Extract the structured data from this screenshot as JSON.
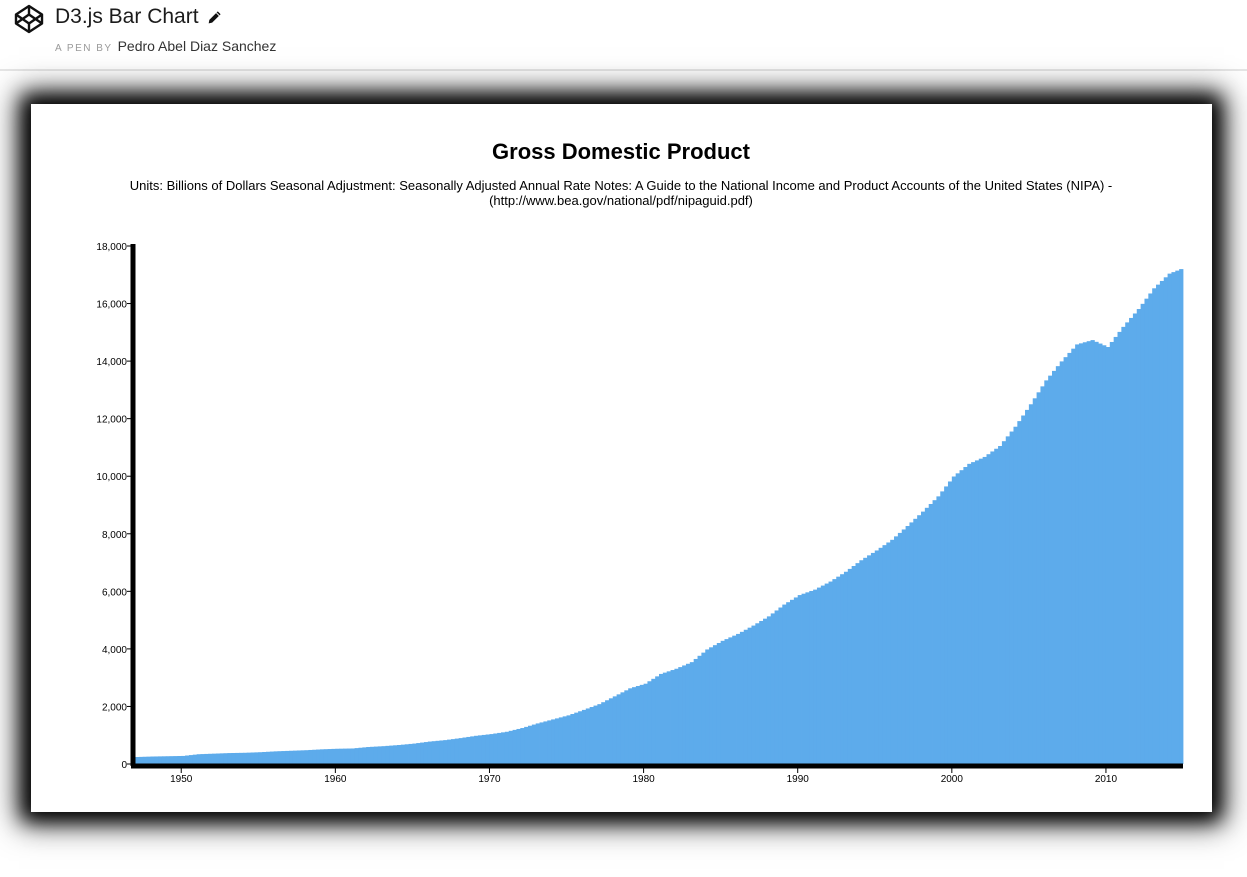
{
  "header": {
    "title": "D3.js Bar Chart",
    "byline_prefix": "A PEN BY",
    "author": "Pedro Abel Diaz Sanchez"
  },
  "colors": {
    "bar": "#5dabeb",
    "axis": "#000000"
  },
  "icons": {
    "logo": "codepen-logo-icon",
    "edit": "pencil-icon"
  },
  "chart_data": {
    "type": "bar",
    "title": "Gross Domestic Product",
    "subtitle_line1": "Units: Billions of Dollars Seasonal Adjustment: Seasonally Adjusted Annual Rate Notes: A Guide to the National Income and Product Accounts of the United States (NIPA) -",
    "subtitle_line2": "(http://www.bea.gov/national/pdf/nipaguid.pdf)",
    "xlabel": "",
    "ylabel": "",
    "xlim": [
      1947,
      2015
    ],
    "ylim": [
      0,
      18000
    ],
    "y_ticks": [
      0,
      2000,
      4000,
      6000,
      8000,
      10000,
      12000,
      14000,
      16000,
      18000
    ],
    "x_ticks": [
      1950,
      1960,
      1970,
      1980,
      1990,
      2000,
      2010
    ],
    "grid": false,
    "legend": "none",
    "x": [
      1947,
      1948,
      1949,
      1950,
      1951,
      1952,
      1953,
      1954,
      1955,
      1956,
      1957,
      1958,
      1959,
      1960,
      1961,
      1962,
      1963,
      1964,
      1965,
      1966,
      1967,
      1968,
      1969,
      1970,
      1971,
      1972,
      1973,
      1974,
      1975,
      1976,
      1977,
      1978,
      1979,
      1980,
      1981,
      1982,
      1983,
      1984,
      1985,
      1986,
      1987,
      1988,
      1989,
      1990,
      1991,
      1992,
      1993,
      1994,
      1995,
      1996,
      1997,
      1998,
      1999,
      2000,
      2001,
      2002,
      2003,
      2004,
      2005,
      2006,
      2007,
      2008,
      2009,
      2010,
      2011,
      2012,
      2013,
      2014,
      2015
    ],
    "values": [
      243,
      260,
      270,
      280,
      340,
      360,
      380,
      390,
      410,
      440,
      460,
      480,
      510,
      530,
      540,
      590,
      620,
      660,
      710,
      780,
      830,
      900,
      980,
      1040,
      1120,
      1250,
      1410,
      1550,
      1690,
      1880,
      2080,
      2350,
      2630,
      2790,
      3130,
      3310,
      3540,
      3980,
      4280,
      4520,
      4810,
      5130,
      5540,
      5870,
      6060,
      6340,
      6680,
      7080,
      7420,
      7790,
      8270,
      8770,
      9300,
      9990,
      10430,
      10670,
      11050,
      11720,
      12500,
      13330,
      13990,
      14580,
      14730,
      14490,
      15190,
      15810,
      16530,
      17040,
      17250
    ]
  }
}
